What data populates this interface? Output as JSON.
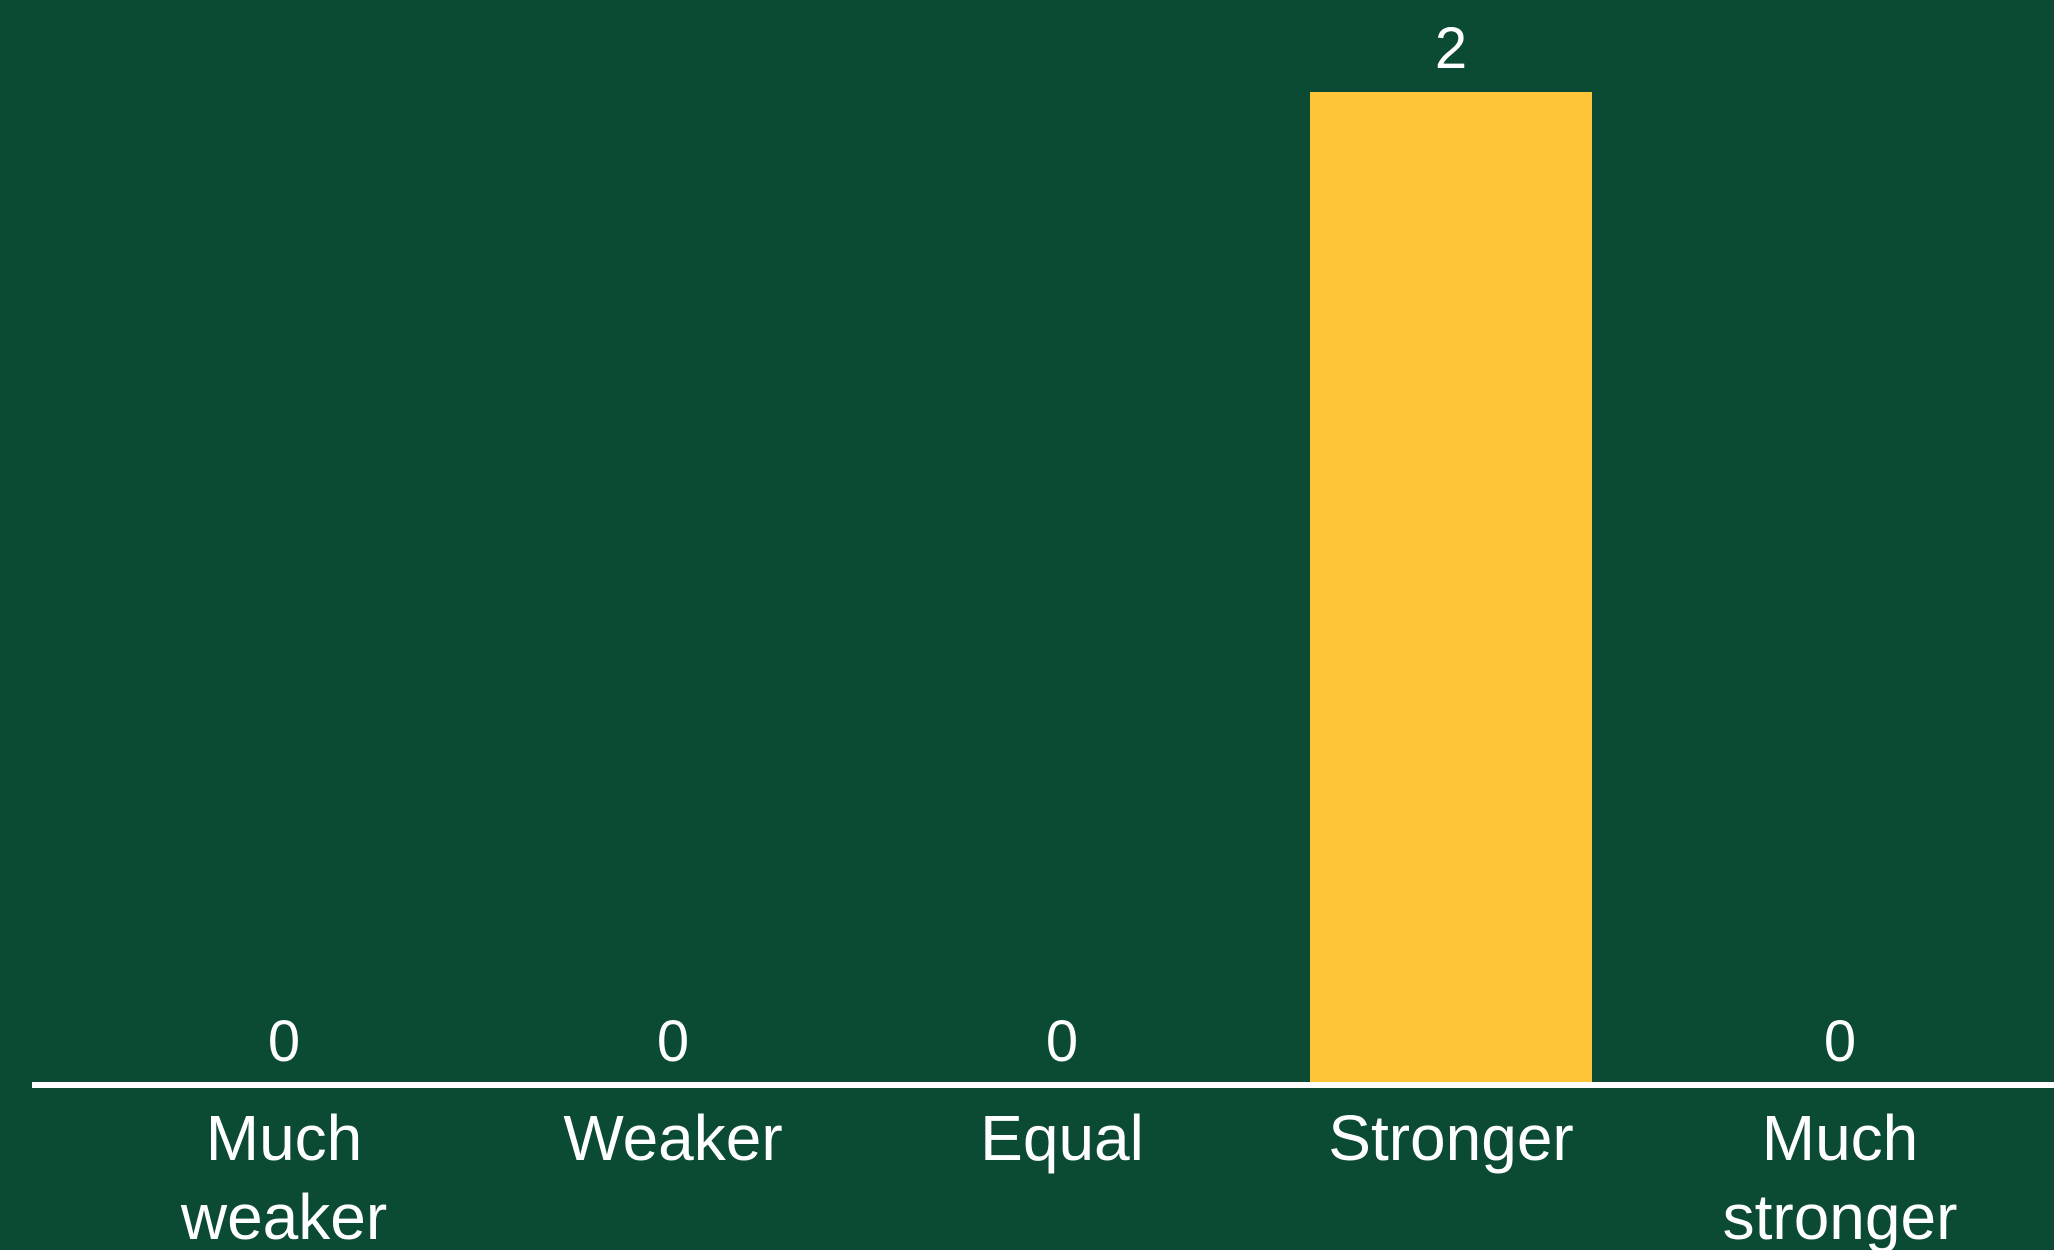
{
  "colors": {
    "background": "#0b4a33",
    "bar": "#fec538",
    "text": "#ffffff",
    "axis": "#ffffff"
  },
  "chart_data": {
    "type": "bar",
    "categories": [
      [
        "Much",
        "weaker"
      ],
      [
        "Weaker"
      ],
      [
        "Equal"
      ],
      [
        "Stronger"
      ],
      [
        "Much",
        "stronger"
      ]
    ],
    "values": [
      0,
      0,
      0,
      2,
      0
    ],
    "data_labels": [
      "0",
      "0",
      "0",
      "2",
      "0"
    ],
    "ylim": [
      0,
      2
    ],
    "title": "",
    "xlabel": "",
    "ylabel": "",
    "grid": false,
    "legend": "none"
  }
}
